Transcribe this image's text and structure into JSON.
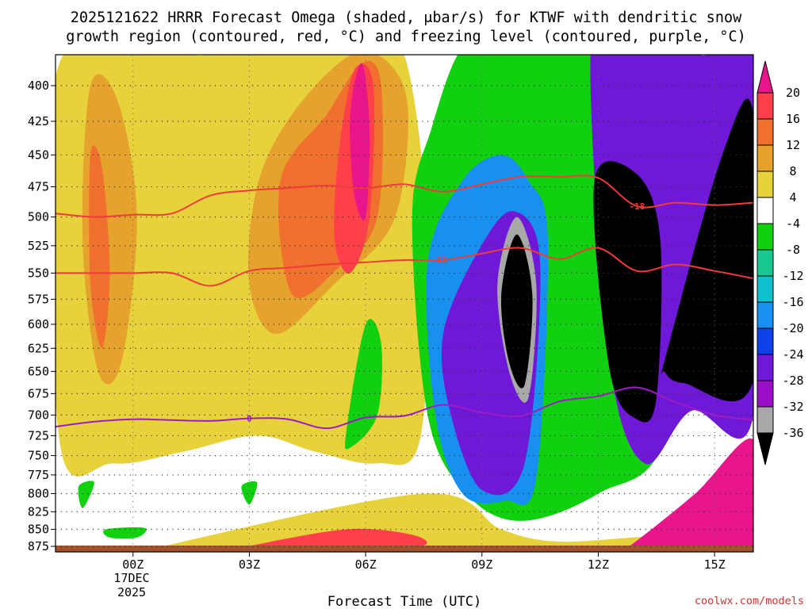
{
  "chart_data": {
    "type": "heatmap",
    "title_line1": "2025121622 HRRR Forecast Omega (shaded, μbar/s) for KTWF with dendritic snow",
    "title_line2": "growth region (contoured, red, °C) and freezing level (contoured, purple, °C)",
    "xlabel": "Forecast Time (UTC)",
    "ylabel": "",
    "credit": "coolwx.com/models",
    "x_ticks": [
      "00Z",
      "03Z",
      "06Z",
      "09Z",
      "12Z",
      "15Z"
    ],
    "x_tick_hours": [
      0,
      3,
      6,
      9,
      12,
      15
    ],
    "x_date_line1": "17DEC",
    "x_date_line2": "2025",
    "xlim_hours": [
      -2,
      16
    ],
    "y_ticks": [
      400,
      425,
      450,
      475,
      500,
      525,
      550,
      575,
      600,
      625,
      650,
      675,
      700,
      725,
      750,
      775,
      800,
      825,
      850,
      875
    ],
    "ylim_hpa": [
      374,
      885
    ],
    "colorbar_labels": [
      "20",
      "16",
      "12",
      "8",
      "4",
      "-4",
      "-8",
      "-12",
      "-16",
      "-20",
      "-24",
      "-28",
      "-32",
      "-36"
    ],
    "colorbar_colors": [
      "#ff3f4a",
      "#f0702e",
      "#e5a22d",
      "#e8d23c",
      "#ffffff",
      "#10d010",
      "#18c890",
      "#10c0cc",
      "#1890f0",
      "#1040e8",
      "#7018d8",
      "#9a10c8",
      "#a8a8a8"
    ],
    "colorbar_over_color": "#e8168a",
    "colorbar_under_color": "#000000",
    "contour_labels": {
      "dgz_warm": "-12",
      "dgz_cold": "-18",
      "freezing": "0"
    },
    "series": [
      {
        "name": "-12 °C (dendritic growth, red)",
        "x": [
          -2,
          -1,
          0,
          1,
          2,
          3,
          4,
          5,
          6,
          7,
          8,
          9,
          10,
          11,
          12,
          13,
          14,
          15,
          16
        ],
        "y": [
          550,
          550,
          550,
          550,
          562,
          548,
          545,
          542,
          540,
          538,
          538,
          532,
          527,
          537,
          527,
          548,
          542,
          548,
          555
        ]
      },
      {
        "name": "-18 °C (dendritic growth, red)",
        "x": [
          -2,
          -1,
          0,
          1,
          2,
          3,
          4,
          5,
          6,
          7,
          8,
          9,
          10,
          11,
          12,
          13,
          14,
          15,
          16
        ],
        "y": [
          497,
          500,
          498,
          497,
          482,
          478,
          476,
          474,
          476,
          473,
          479,
          473,
          467,
          467,
          468,
          491,
          488,
          490,
          488
        ]
      },
      {
        "name": "0 °C (freezing level, purple)",
        "x": [
          -2,
          -1,
          0,
          1,
          2,
          3,
          4,
          5,
          6,
          7,
          8,
          9,
          10,
          11,
          12,
          13,
          14,
          15,
          16
        ],
        "y": [
          714,
          708,
          705,
          706,
          707,
          704,
          705,
          716,
          703,
          701,
          688,
          697,
          701,
          684,
          678,
          668,
          685,
          700,
          706
        ]
      }
    ],
    "shaded_regions": [
      {
        "level": 4,
        "x": [
          -1.9,
          1.8,
          2.9,
          3.1,
          4.8,
          5.9,
          7.0,
          7.6,
          7.4,
          6.3,
          4.7,
          3.2,
          1.3,
          -0.5,
          -1.9
        ],
        "y": [
          385,
          380,
          375,
          375,
          375,
          375,
          380,
          520,
          730,
          760,
          745,
          725,
          745,
          760,
          730
        ]
      },
      {
        "level": 8,
        "x": [
          -1.1,
          -0.4,
          0.1,
          -0.3,
          -0.9,
          -1.3
        ],
        "y": [
          400,
          410,
          500,
          640,
          650,
          520
        ]
      },
      {
        "level": 12,
        "x": [
          -1.1,
          -0.8,
          -0.6,
          -0.8,
          -1.1
        ],
        "y": [
          450,
          460,
          550,
          625,
          560
        ]
      },
      {
        "level": 8,
        "x": [
          3.2,
          4.1,
          5.6,
          6.6,
          7.1,
          6.7,
          5.2,
          3.7,
          3.0
        ],
        "y": [
          475,
          420,
          380,
          385,
          420,
          505,
          560,
          610,
          560
        ]
      },
      {
        "level": 12,
        "x": [
          3.8,
          5.0,
          5.9,
          6.4,
          6.3,
          5.3,
          4.1
        ],
        "y": [
          470,
          420,
          385,
          400,
          500,
          545,
          570
        ]
      },
      {
        "level": 16,
        "x": [
          5.3,
          5.7,
          6.2,
          6.1,
          5.6,
          5.2
        ],
        "y": [
          450,
          390,
          400,
          500,
          550,
          520
        ]
      },
      {
        "level": 20,
        "x": [
          5.6,
          5.9,
          6.1,
          6.0,
          5.7
        ],
        "y": [
          420,
          385,
          430,
          500,
          480
        ]
      },
      {
        "level": 4,
        "x": [
          0.6,
          7.5,
          9.5,
          11,
          13.5,
          16,
          16,
          0.6
        ],
        "y": [
          877,
          800,
          850,
          868,
          860,
          862,
          880,
          880
        ]
      },
      {
        "level": 16,
        "x": [
          2.8,
          5.5,
          7.2,
          7.4,
          5.0,
          3.0
        ],
        "y": [
          877,
          850,
          858,
          875,
          880,
          880
        ]
      },
      {
        "level": -4,
        "x": [
          7.2,
          7.7,
          8.5,
          9.5,
          10.3,
          11.0,
          12.5,
          13.5,
          14.5,
          14.8,
          13.8,
          12.0,
          10.0,
          8.6,
          7.6
        ],
        "y": [
          500,
          430,
          375,
          375,
          375,
          375,
          375,
          375,
          375,
          450,
          720,
          800,
          838,
          800,
          700
        ]
      },
      {
        "level": -4,
        "x": [
          5.5,
          6.0,
          6.4,
          6.3,
          5.6
        ],
        "y": [
          720,
          600,
          620,
          700,
          740
        ]
      },
      {
        "level": -4,
        "x": [
          -1.4,
          -1.0,
          -1.3
        ],
        "y": [
          790,
          785,
          820
        ]
      },
      {
        "level": -4,
        "x": [
          2.8,
          3.2,
          3.0
        ],
        "y": [
          790,
          785,
          815
        ]
      },
      {
        "level": -4,
        "x": [
          -0.7,
          0.3,
          0.1,
          -0.6
        ],
        "y": [
          850,
          848,
          862,
          862
        ]
      },
      {
        "level": -16,
        "x": [
          7.6,
          8.5,
          9.5,
          10.2,
          10.7,
          10.4,
          9.6,
          8.5,
          7.8
        ],
        "y": [
          540,
          470,
          450,
          470,
          520,
          780,
          810,
          800,
          700
        ]
      },
      {
        "level": -24,
        "x": [
          8.0,
          8.9,
          9.8,
          10.5,
          10.1,
          9.0,
          8.2
        ],
        "y": [
          610,
          530,
          495,
          540,
          760,
          795,
          700
        ]
      },
      {
        "level": -32,
        "x": [
          9.4,
          9.9,
          10.4,
          10.2,
          9.7
        ],
        "y": [
          560,
          500,
          560,
          680,
          650
        ]
      },
      {
        "level": -36,
        "x": [
          9.5,
          9.9,
          10.3,
          10.1,
          9.7
        ],
        "y": [
          570,
          515,
          570,
          665,
          640
        ]
      },
      {
        "level": -24,
        "x": [
          11.8,
          12.6,
          13.8,
          14.7,
          16,
          16,
          14.4,
          13.2,
          12.3
        ],
        "y": [
          380,
          375,
          375,
          380,
          380,
          700,
          695,
          760,
          640
        ]
      },
      {
        "level": -36,
        "x": [
          11.9,
          13.0,
          13.6,
          13.5,
          13.0,
          12.3
        ],
        "y": [
          470,
          465,
          520,
          680,
          705,
          650
        ]
      },
      {
        "level": -36,
        "x": [
          13.7,
          15.2,
          16,
          16,
          14.2,
          13.7
        ],
        "y": [
          640,
          450,
          420,
          660,
          663,
          650
        ]
      },
      {
        "level": 20,
        "x": [
          12.8,
          14.5,
          16,
          16,
          12.5
        ],
        "y": [
          875,
          800,
          730,
          880,
          880
        ]
      }
    ]
  }
}
